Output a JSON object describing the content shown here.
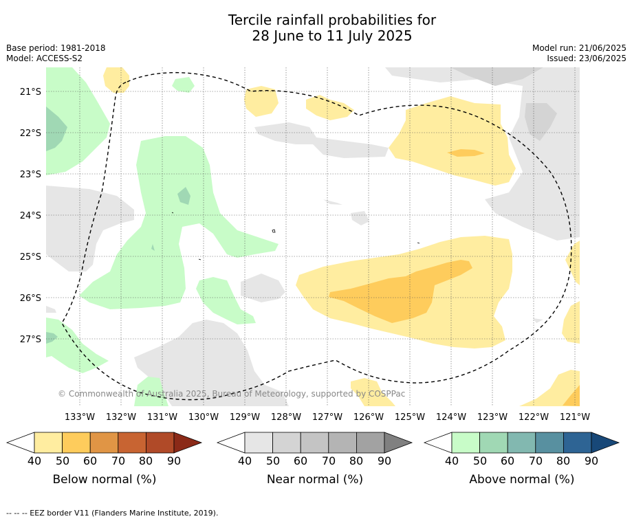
{
  "title_line1": "Tercile rainfall probabilities for",
  "title_line2": "28 June to 11 July 2025",
  "base_period": "Base period: 1981-2018",
  "model": "Model: ACCESS-S2",
  "model_run": "Model run: 21/06/2025",
  "issued": "Issued: 23/06/2025",
  "copyright": "© Commonwealth of Australia 2025, Bureau of Meteorology, supported by COSPPac",
  "footnote": "--  --  -- EEZ border V11 (Flanders Marine Institute, 2019).",
  "map": {
    "lon_labels": [
      "133°W",
      "132°W",
      "131°W",
      "130°W",
      "129°W",
      "128°W",
      "127°W",
      "126°W",
      "125°W",
      "124°W",
      "123°W",
      "122°W",
      "121°W"
    ],
    "lat_labels": [
      "21°S",
      "22°S",
      "23°S",
      "24°S",
      "25°S",
      "26°S",
      "27°S"
    ]
  },
  "colorbars": [
    {
      "title": "Below normal (%)",
      "ticks": [
        "40",
        "50",
        "60",
        "70",
        "80",
        "90"
      ],
      "colors": [
        "#ffffff",
        "#ffeda0",
        "#fecc5c",
        "#e09545",
        "#c86432",
        "#b04a28",
        "#8b2a18"
      ]
    },
    {
      "title": "Near normal (%)",
      "ticks": [
        "40",
        "50",
        "60",
        "70",
        "80",
        "90"
      ],
      "colors": [
        "#ffffff",
        "#e6e6e6",
        "#d4d4d4",
        "#c4c4c4",
        "#b4b4b4",
        "#a2a2a2",
        "#808080"
      ]
    },
    {
      "title": "Above normal (%)",
      "ticks": [
        "40",
        "50",
        "60",
        "70",
        "80",
        "90"
      ],
      "colors": [
        "#ffffff",
        "#c8fcc8",
        "#a0d8b4",
        "#82b8b0",
        "#5890a0",
        "#2e6494",
        "#184878"
      ]
    }
  ]
}
